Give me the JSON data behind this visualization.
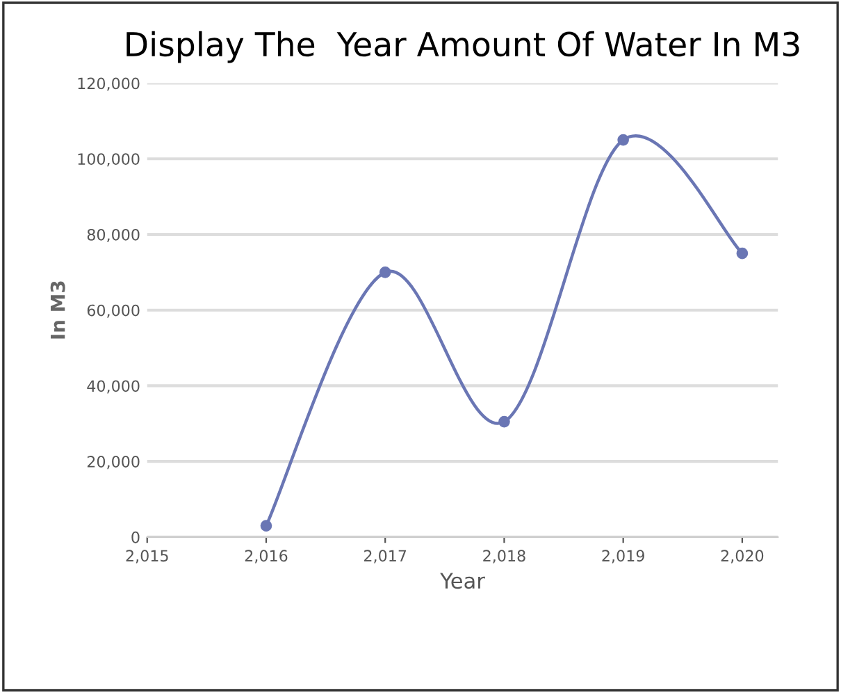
{
  "chart_data": {
    "type": "line",
    "title": "Display The  Year Amount Of Water In M3",
    "xlabel": "Year",
    "ylabel": "In M3",
    "x": [
      2016,
      2017,
      2018,
      2019,
      2020
    ],
    "series": [
      {
        "color": "#6a76b4",
        "values": [
          3000,
          70000,
          30500,
          105000,
          75000
        ]
      }
    ],
    "xlim": [
      2015,
      2020.3
    ],
    "xticks": [
      {
        "value": 2015,
        "label": "2,015"
      },
      {
        "value": 2016,
        "label": "2,016"
      },
      {
        "value": 2017,
        "label": "2,017"
      },
      {
        "value": 2018,
        "label": "2,018"
      },
      {
        "value": 2019,
        "label": "2,019"
      },
      {
        "value": 2020,
        "label": "2,020"
      }
    ],
    "ylim": [
      0,
      120000
    ],
    "yticks": [
      {
        "value": 0,
        "label": "0"
      },
      {
        "value": 20000,
        "label": "20,000"
      },
      {
        "value": 40000,
        "label": "40,000"
      },
      {
        "value": 60000,
        "label": "60,000"
      },
      {
        "value": 80000,
        "label": "80,000"
      },
      {
        "value": 100000,
        "label": "100,000"
      },
      {
        "value": 120000,
        "label": "120,000"
      }
    ],
    "grid": "y",
    "marker": "circle",
    "line_style": "solid",
    "legend": false
  }
}
